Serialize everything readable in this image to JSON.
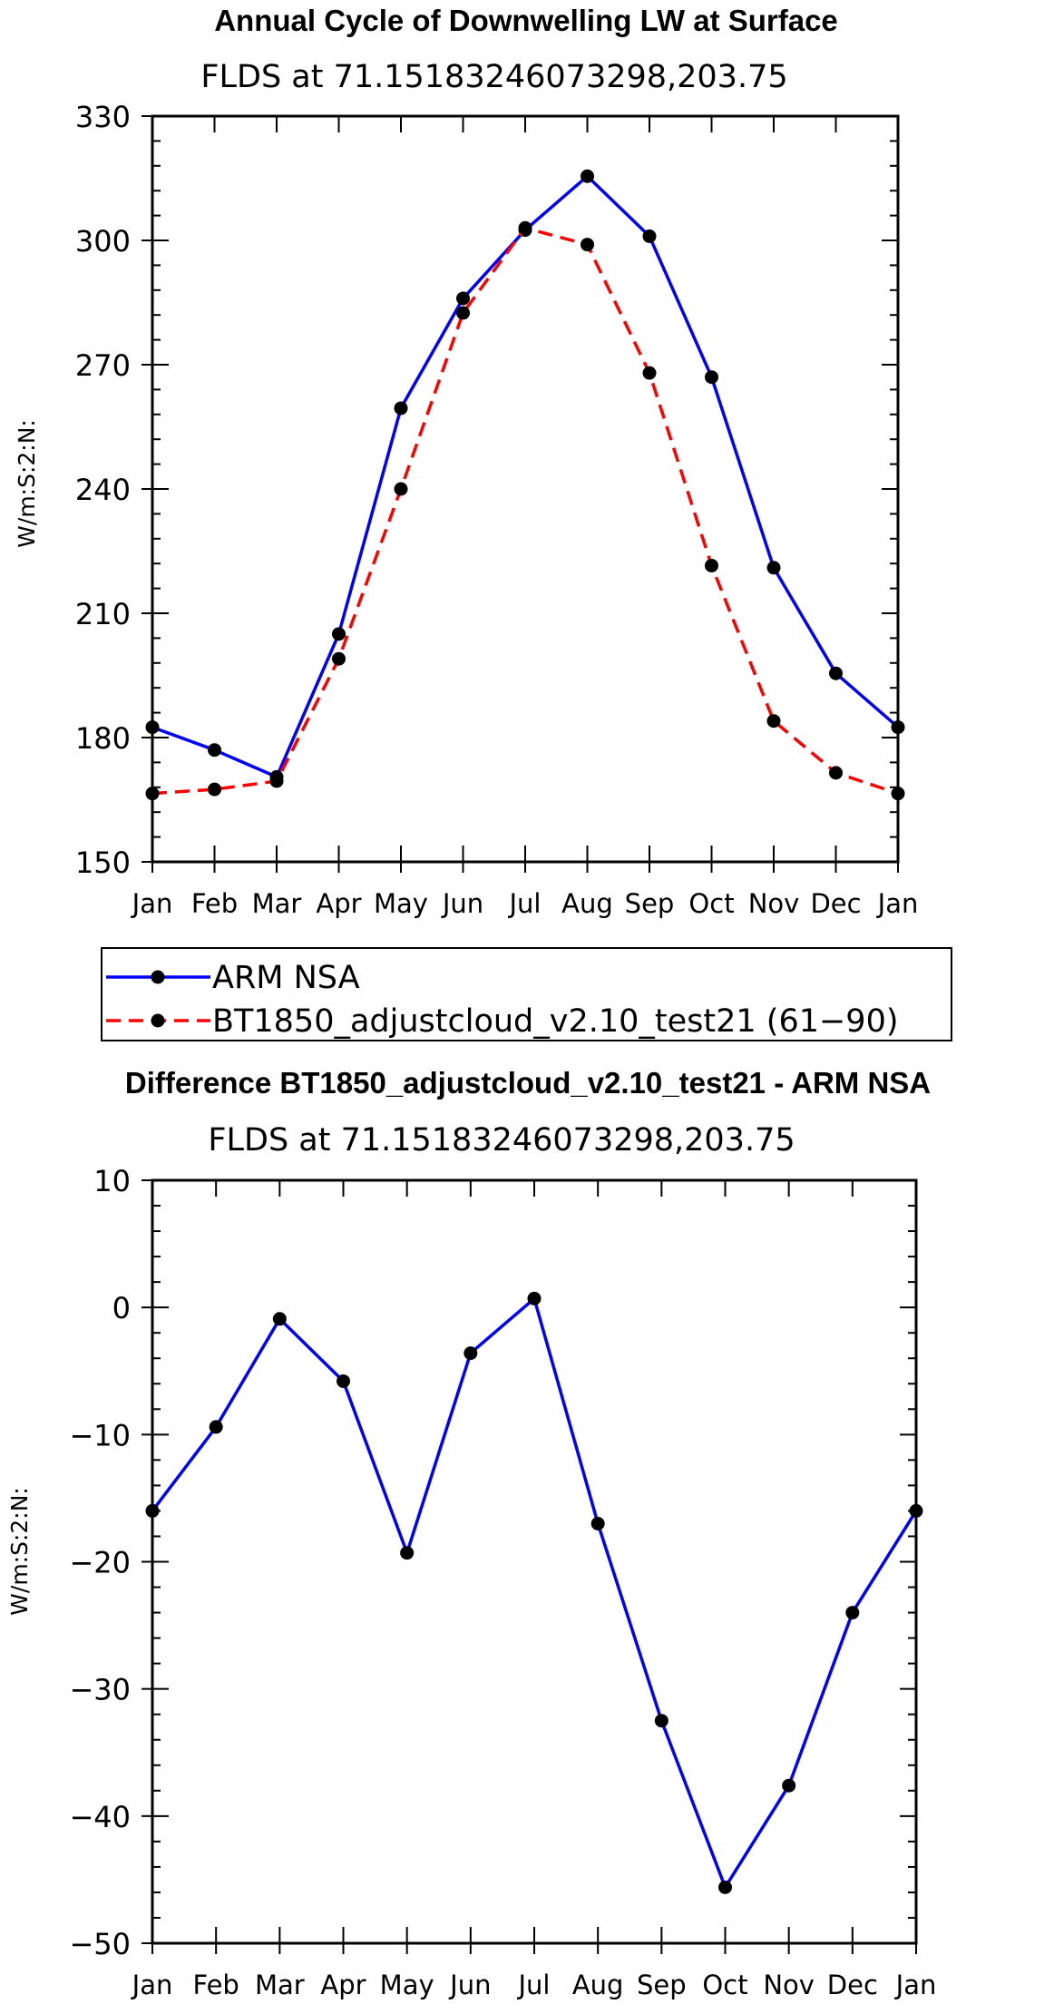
{
  "chart_data": [
    {
      "type": "line",
      "title": "Annual Cycle of Downwelling LW at Surface",
      "subtitle": "FLDS at 71.15183246073298,203.75",
      "xlabel": "",
      "ylabel": "W/m:S:2:N:",
      "categories": [
        "Jan",
        "Feb",
        "Mar",
        "Apr",
        "May",
        "Jun",
        "Jul",
        "Aug",
        "Sep",
        "Oct",
        "Nov",
        "Dec",
        "Jan"
      ],
      "ylim": [
        150,
        330
      ],
      "yticks": [
        150,
        180,
        210,
        240,
        270,
        300,
        330
      ],
      "grid": false,
      "legend_placement": "below",
      "series": [
        {
          "name": "ARM NSA",
          "color": "#0000ff",
          "dash": "solid",
          "values": [
            182.5,
            177,
            170.5,
            205,
            259.5,
            286,
            302.5,
            315.5,
            301,
            267,
            221,
            195.5,
            182.5
          ]
        },
        {
          "name": "BT1850_adjustcloud_v2.10_test21 (61−90)",
          "color": "#ff0000",
          "dash": "dashed",
          "values": [
            166.5,
            167.5,
            169.5,
            199,
            240,
            282.5,
            303,
            299,
            268,
            221.5,
            184,
            171.5,
            166.5
          ]
        }
      ]
    },
    {
      "type": "line",
      "title": "Difference BT1850_adjustcloud_v2.10_test21 - ARM NSA",
      "subtitle": "FLDS at 71.15183246073298,203.75",
      "xlabel": "",
      "ylabel": "W/m:S:2:N:",
      "categories": [
        "Jan",
        "Feb",
        "Mar",
        "Apr",
        "May",
        "Jun",
        "Jul",
        "Aug",
        "Sep",
        "Oct",
        "Nov",
        "Dec",
        "Jan"
      ],
      "ylim": [
        -50,
        10
      ],
      "yticks": [
        -50,
        -40,
        -30,
        -20,
        -10,
        0,
        10
      ],
      "grid": false,
      "series": [
        {
          "color": "#0000ff",
          "dash": "solid",
          "values": [
            -16,
            -9.4,
            -0.9,
            -5.8,
            -19.3,
            -3.6,
            0.7,
            -17,
            -32.5,
            -45.6,
            -37.6,
            -24,
            -16
          ]
        }
      ]
    }
  ]
}
